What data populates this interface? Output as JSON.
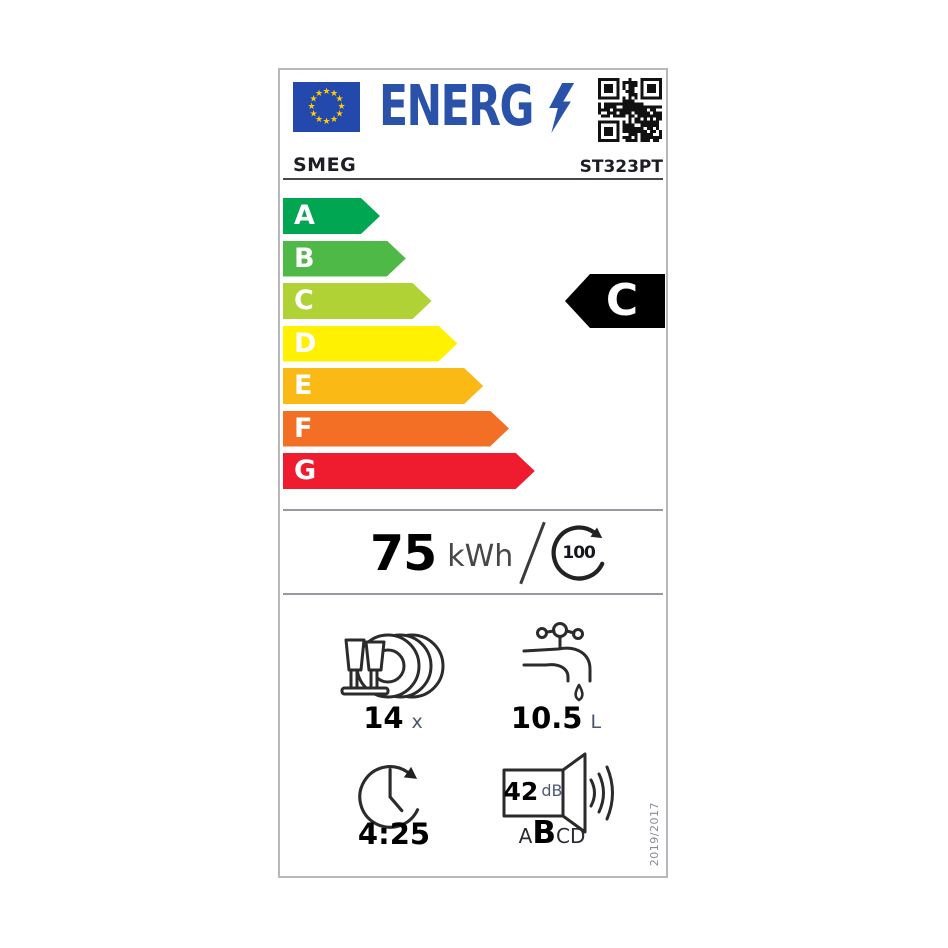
{
  "header": {
    "logo_text": "ENERG",
    "brand": "SMEG",
    "model": "ST323PT"
  },
  "efficiency_scale": {
    "classes": [
      {
        "letter": "A",
        "color": "#00a651"
      },
      {
        "letter": "B",
        "color": "#4fb948"
      },
      {
        "letter": "C",
        "color": "#b0d235"
      },
      {
        "letter": "D",
        "color": "#fff101"
      },
      {
        "letter": "E",
        "color": "#fbb916"
      },
      {
        "letter": "F",
        "color": "#f36f26"
      },
      {
        "letter": "G",
        "color": "#ee1c2e"
      }
    ]
  },
  "rating": {
    "letter": "C",
    "background": "#000000"
  },
  "energy": {
    "value": "75",
    "unit": "kWh",
    "per_cycles": "100"
  },
  "place_settings": {
    "value": "14",
    "unit": "x"
  },
  "water": {
    "value": "10.5",
    "unit": "L"
  },
  "duration": {
    "value": "4:25"
  },
  "noise": {
    "value": "42",
    "unit": "dB",
    "scale_letters": [
      "A",
      "B",
      "C",
      "D"
    ],
    "noise_class": "B"
  },
  "regulation": "2019/2017",
  "colors": {
    "logo_blue": "#2a52a8",
    "flag_blue": "#2449ac",
    "star_yellow": "#ffcc00",
    "rating_text": "#ffffff"
  }
}
